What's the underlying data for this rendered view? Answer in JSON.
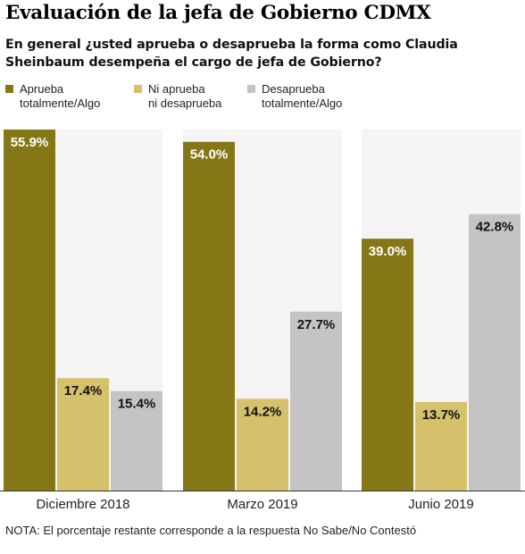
{
  "header": {
    "title": "Evaluación de la jefa de Gobierno CDMX",
    "subtitle": "En general ¿usted aprueba o desaprueba la forma como Claudia Sheinbaum desempeña el cargo de jefa de Gobierno?"
  },
  "note": "NOTA: El porcentaje restante corresponde a la respuesta No Sabe/No Contestó",
  "colors": {
    "aprueba": "#857716",
    "ni": "#d5c06c",
    "desaprueba": "#c4c4c4",
    "group_bg": "#f4f4f4",
    "label_light": "#ffffff",
    "label_dark": "#111111"
  },
  "chart_data": {
    "type": "bar",
    "categories": [
      "Diciembre 2018",
      "Marzo 2019",
      "Junio 2019"
    ],
    "series": [
      {
        "name": "Aprueba\ntotalmente/Algo",
        "values": [
          55.9,
          54.0,
          39.0
        ]
      },
      {
        "name": "Ni aprueba\nni desaprueba",
        "values": [
          17.4,
          14.2,
          13.7
        ]
      },
      {
        "name": "Desaprueba\ntotalmente/Algo",
        "values": [
          15.4,
          27.7,
          42.8
        ]
      }
    ],
    "data_labels": [
      [
        "55.9%",
        "17.4%",
        "15.4%"
      ],
      [
        "54.0%",
        "14.2%",
        "27.7%"
      ],
      [
        "39.0%",
        "13.7%",
        "42.8%"
      ]
    ],
    "ylim": [
      0,
      55.9
    ],
    "grid": false,
    "legend_position": "top"
  }
}
